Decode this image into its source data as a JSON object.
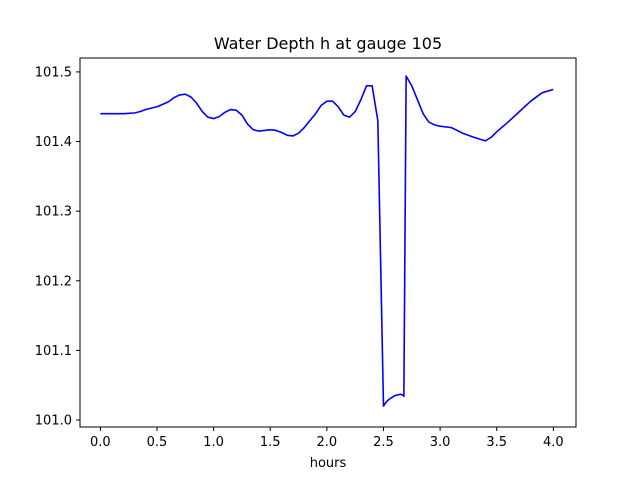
{
  "chart_data": {
    "type": "line",
    "title": "Water Depth h at gauge 105",
    "xlabel": "hours",
    "ylabel": "",
    "xlim": [
      -0.18,
      4.2
    ],
    "ylim": [
      100.99,
      101.52
    ],
    "xticks": [
      0.0,
      0.5,
      1.0,
      1.5,
      2.0,
      2.5,
      3.0,
      3.5,
      4.0
    ],
    "xtick_labels": [
      "0.0",
      "0.5",
      "1.0",
      "1.5",
      "2.0",
      "2.5",
      "3.0",
      "3.5",
      "4.0"
    ],
    "yticks": [
      101.0,
      101.1,
      101.2,
      101.3,
      101.4,
      101.5
    ],
    "ytick_labels": [
      "101.0",
      "101.1",
      "101.2",
      "101.3",
      "101.4",
      "101.5"
    ],
    "grid": false,
    "series": [
      {
        "color": "#0000ff",
        "x": [
          0.0,
          0.1,
          0.2,
          0.3,
          0.35,
          0.4,
          0.5,
          0.6,
          0.65,
          0.7,
          0.75,
          0.8,
          0.85,
          0.9,
          0.95,
          1.0,
          1.05,
          1.1,
          1.15,
          1.2,
          1.25,
          1.3,
          1.35,
          1.4,
          1.45,
          1.5,
          1.55,
          1.6,
          1.65,
          1.7,
          1.75,
          1.8,
          1.85,
          1.9,
          1.95,
          2.0,
          2.05,
          2.1,
          2.15,
          2.2,
          2.25,
          2.3,
          2.35,
          2.4,
          2.45,
          2.5,
          2.5,
          2.52,
          2.55,
          2.6,
          2.65,
          2.68,
          2.68,
          2.7,
          2.75,
          2.8,
          2.85,
          2.9,
          2.95,
          3.0,
          3.1,
          3.2,
          3.3,
          3.4,
          3.45,
          3.5,
          3.6,
          3.7,
          3.8,
          3.9,
          4.0
        ],
        "y": [
          101.44,
          101.44,
          101.44,
          101.441,
          101.443,
          101.446,
          101.45,
          101.457,
          101.463,
          101.467,
          101.468,
          101.464,
          101.455,
          101.443,
          101.435,
          101.433,
          101.436,
          101.442,
          101.446,
          101.445,
          101.438,
          101.425,
          101.417,
          101.415,
          101.416,
          101.417,
          101.416,
          101.413,
          101.409,
          101.408,
          101.412,
          101.42,
          101.43,
          101.44,
          101.452,
          101.458,
          101.458,
          101.45,
          101.438,
          101.435,
          101.443,
          101.46,
          101.48,
          101.48,
          101.43,
          101.02,
          101.02,
          101.025,
          101.03,
          101.035,
          101.037,
          101.035,
          101.034,
          101.494,
          101.48,
          101.46,
          101.44,
          101.428,
          101.424,
          101.422,
          101.42,
          101.412,
          101.406,
          101.401,
          101.406,
          101.414,
          101.428,
          101.443,
          101.458,
          101.47,
          101.475
        ]
      }
    ]
  }
}
